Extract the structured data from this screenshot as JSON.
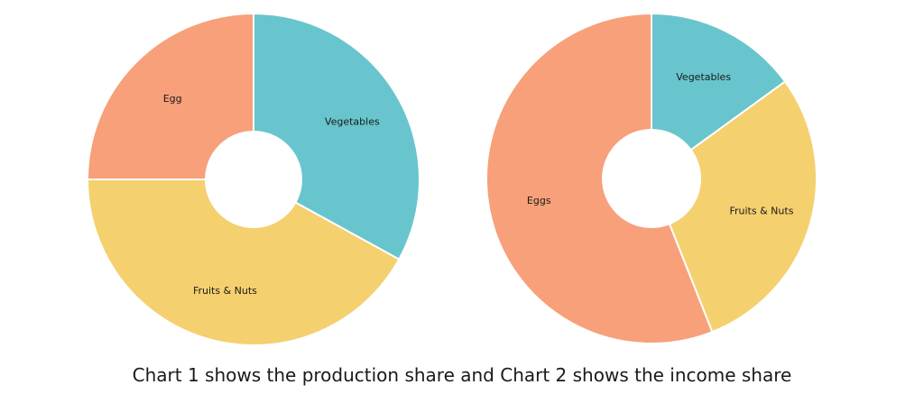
{
  "caption": "Chart 1 shows the production share and Chart 2 shows the income share",
  "chart_data": [
    {
      "type": "pie",
      "categories": [
        "Vegetables",
        "Fruits & Nuts",
        "Egg"
      ],
      "values": [
        33,
        42,
        25
      ],
      "colors": [
        "#68C5CD",
        "#F5D06F",
        "#F7A07A"
      ],
      "donut": true,
      "legend": "none"
    },
    {
      "type": "pie",
      "categories": [
        "Vegetables",
        "Fruits & Nuts",
        "Eggs"
      ],
      "values": [
        15,
        29,
        56
      ],
      "colors": [
        "#68C5CD",
        "#F5D06F",
        "#F7A07A"
      ],
      "donut": true,
      "legend": "none"
    }
  ]
}
